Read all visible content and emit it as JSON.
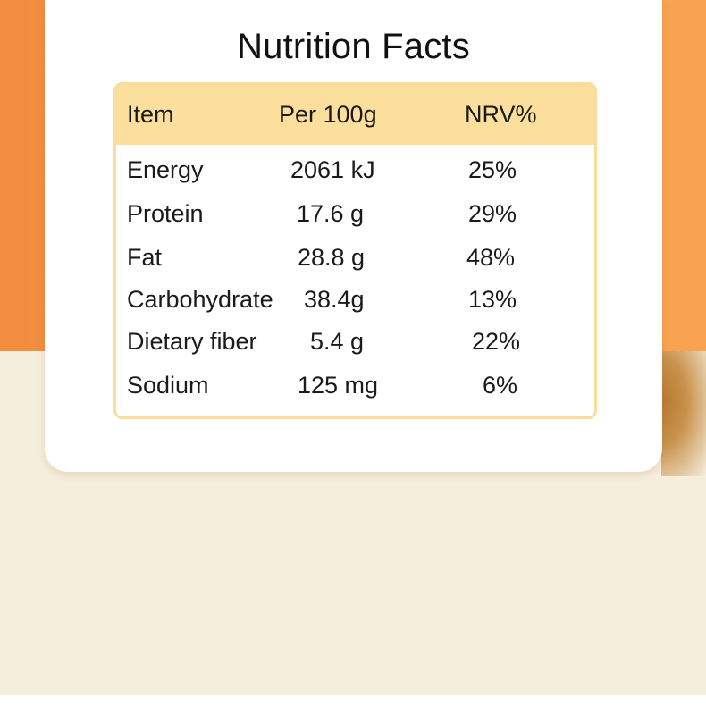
{
  "title": "Nutrition Facts",
  "table": {
    "headers": {
      "item": "Item",
      "per100g": "Per 100g",
      "nrv": "NRV%"
    },
    "rows": [
      {
        "item": "Energy",
        "per100g": "2061 kJ",
        "nrv": "25%"
      },
      {
        "item": "Protein",
        "per100g": "17.6 g",
        "nrv": "29%"
      },
      {
        "item": "Fat",
        "per100g": "28.8 g",
        "nrv": "48%"
      },
      {
        "item": "Carbohydrate",
        "per100g": "38.4g",
        "nrv": "13%"
      },
      {
        "item": "Dietary fiber",
        "per100g": "5.4 g",
        "nrv": "22%"
      },
      {
        "item": "Sodium",
        "per100g": "125 mg",
        "nrv": "6%"
      }
    ]
  },
  "colors": {
    "header_fill": "#fddf9d",
    "table_border": "#fbdd9b",
    "orange_background": "#f7a04f",
    "cream_background": "#f6eedd"
  }
}
